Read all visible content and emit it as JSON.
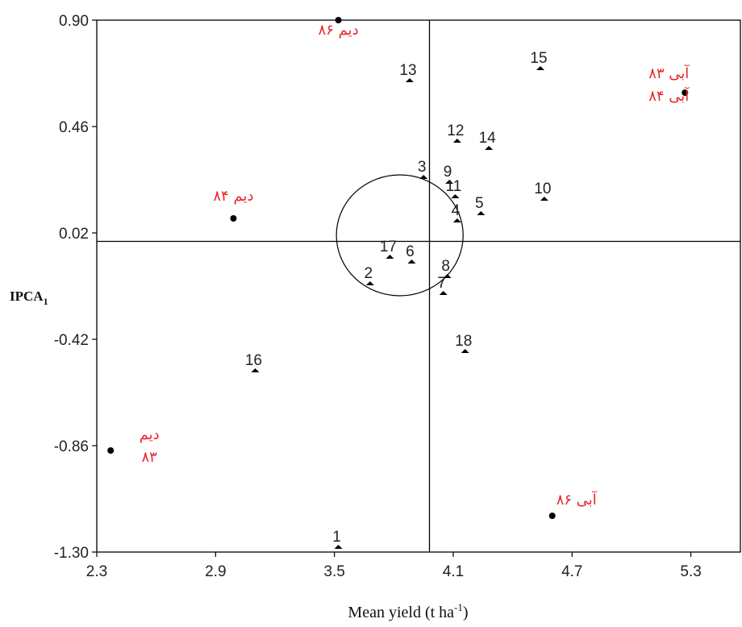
{
  "chart_data": {
    "type": "scatter",
    "title": "",
    "xlabel": "Mean yield (t ha",
    "xlabel_sup": "-1",
    "xlabel_end": ")",
    "ylabel": "IPCA",
    "ylabel_sub": "1",
    "xlim": [
      2.3,
      5.55
    ],
    "ylim": [
      -1.3,
      0.9
    ],
    "x_ticks": [
      "2.3",
      "2.9",
      "3.5",
      "4.1",
      "4.7",
      "5.3"
    ],
    "y_ticks": [
      "0.90",
      "0.46",
      "0.02",
      "-0.42",
      "-0.86",
      "-1.30"
    ],
    "grand_mean": 3.98,
    "ipca_zero": -0.015,
    "grid": false,
    "genotypes": [
      {
        "label": "1",
        "x": 3.52,
        "y": -1.28
      },
      {
        "label": "2",
        "x": 3.68,
        "y": -0.19
      },
      {
        "label": "3",
        "x": 3.95,
        "y": 0.25
      },
      {
        "label": "4",
        "x": 4.12,
        "y": 0.07
      },
      {
        "label": "5",
        "x": 4.24,
        "y": 0.1
      },
      {
        "label": "6",
        "x": 3.89,
        "y": -0.1
      },
      {
        "label": "7",
        "x": 4.05,
        "y": -0.23
      },
      {
        "label": "8",
        "x": 4.07,
        "y": -0.16
      },
      {
        "label": "9",
        "x": 4.08,
        "y": 0.23
      },
      {
        "label": "10",
        "x": 4.56,
        "y": 0.16
      },
      {
        "label": "11",
        "x": 4.11,
        "y": 0.17
      },
      {
        "label": "12",
        "x": 4.12,
        "y": 0.4
      },
      {
        "label": "13",
        "x": 3.88,
        "y": 0.65
      },
      {
        "label": "14",
        "x": 4.28,
        "y": 0.37
      },
      {
        "label": "15",
        "x": 4.54,
        "y": 0.7
      },
      {
        "label": "16",
        "x": 3.1,
        "y": -0.55
      },
      {
        "label": "17",
        "x": 3.78,
        "y": -0.08
      },
      {
        "label": "18",
        "x": 4.16,
        "y": -0.47
      }
    ],
    "environments": [
      {
        "label": "دیم ۸۶",
        "x": 3.52,
        "y": 0.9
      },
      {
        "label": "دیم ۸۴",
        "x": 2.99,
        "y": 0.08
      },
      {
        "label": "دیم",
        "label2": "۸۳",
        "x": 2.37,
        "y": -0.88
      },
      {
        "label": "آبی ۸۳",
        "label2": "آبی ۸۴",
        "x": 5.27,
        "y": 0.6
      },
      {
        "label": "آبی ۸۶",
        "x": 4.6,
        "y": -1.15
      }
    ],
    "circle": {
      "center_x": 3.83,
      "center_y": 0.01,
      "radius_x": 0.32,
      "radius_y": 0.25
    }
  },
  "colors": {
    "environment_label": "#e8242a",
    "axis": "#000000",
    "marker": "#000000"
  }
}
